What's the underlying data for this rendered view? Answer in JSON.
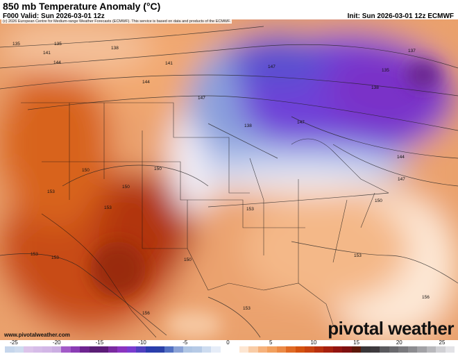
{
  "header": {
    "title": "850 mb Temperature Anomaly (°C)",
    "valid": "F000 Valid: Sun 2026-03-01 12z",
    "init": "Init: Sun 2026-03-01 12z ECMWF"
  },
  "map": {
    "copyright": "(c) 2026 European Centre for Medium-range Weather Forecasts (ECMWF). This service is based on data and products of the ECMWF.",
    "contour_labels": [
      "135",
      "138",
      "141",
      "144",
      "147",
      "150",
      "153",
      "135",
      "138",
      "141",
      "144",
      "147",
      "150",
      "153",
      "156",
      "137",
      "135",
      "138",
      "147",
      "144",
      "147",
      "150",
      "153",
      "153",
      "153",
      "150",
      "150",
      "153",
      "156",
      "153"
    ],
    "site": "www.pivotalweather.com",
    "brand": "pivotal weather"
  },
  "colorbar": {
    "ticks": [
      "-25",
      "-20",
      "-15",
      "-10",
      "-5",
      "0",
      "5",
      "10",
      "15",
      "20",
      "25"
    ],
    "colors": [
      "#c6d6ec",
      "#cfdcef",
      "#dcc4ea",
      "#d6bce8",
      "#d2b6e6",
      "#cbaee2",
      "#a25ac8",
      "#8a3cb4",
      "#6e2490",
      "#5a1e74",
      "#5c1c78",
      "#7a2aa0",
      "#8a34c0",
      "#7a3cd0",
      "#5040c0",
      "#2a3cae",
      "#2a40a8",
      "#5270c2",
      "#8aa2d6",
      "#b0c6e4",
      "#b6cae6",
      "#cddcf0",
      "#e6edf8",
      "#ffffff",
      "#ffffff",
      "#fde6d2",
      "#f9cca6",
      "#f6b27c",
      "#f2a05e",
      "#ec8a46",
      "#e06a24",
      "#d45210",
      "#c84210",
      "#b8300e",
      "#a6200e",
      "#921410",
      "#7e1010",
      "#5c1808",
      "#3a3638",
      "#3e3a3e",
      "#5a5a5e",
      "#6a6a6e",
      "#7a7a7e",
      "#8c8c90",
      "#a2a2a6",
      "#b8b8bc",
      "#d0d0d4",
      "#e2e2e6"
    ]
  }
}
